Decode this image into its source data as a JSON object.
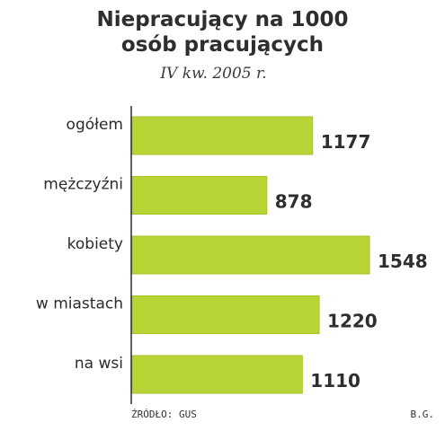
{
  "header": {
    "title_line1": "Niepracujący na 1000",
    "title_line2": "osób pracujących",
    "subtitle": "IV kw. 2005 r."
  },
  "footer": {
    "source": "ŹRÓDŁO: GUS",
    "credit": "B.G."
  },
  "colors": {
    "bar": "#b7d535",
    "bar_outline": "#a6c42a",
    "axis": "#2b2b2b",
    "label": "#2b2b2b",
    "value": "#2e2e2e"
  },
  "chart_data": {
    "type": "bar",
    "orientation": "horizontal",
    "title": "Niepracujący na 1000 osób pracujących",
    "subtitle": "IV kw. 2005 r.",
    "categories": [
      "ogółem",
      "mężczyźni",
      "kobiety",
      "w miastach",
      "na wsi"
    ],
    "values": [
      1177,
      878,
      1548,
      1220,
      1110
    ],
    "value_labels": [
      "1177",
      "878",
      "1548",
      "1220",
      "1110"
    ],
    "xlabel": "",
    "ylabel": "",
    "xlim": [
      0,
      1548
    ],
    "grid": false
  }
}
